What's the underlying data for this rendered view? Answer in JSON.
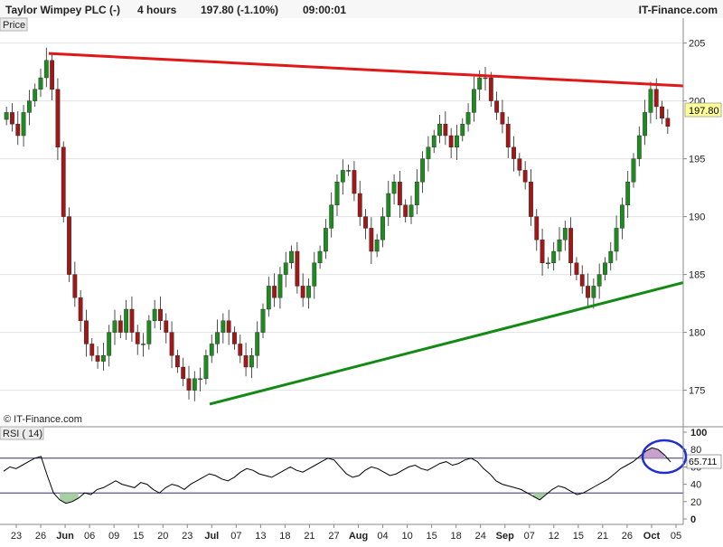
{
  "header": {
    "instrument": "Taylor Wimpey PLC (-)",
    "timeframe": "4 hours",
    "price_change": "197.80 (-1.10%)",
    "time": "09:00:01",
    "brand": "IT-Finance.com"
  },
  "price_panel": {
    "label": "Price",
    "last_price_badge": "197.80",
    "watermark": "© IT-Finance.com"
  },
  "rsi_panel": {
    "label": "RSI ( 14)",
    "value_badge": "65.711"
  },
  "colors": {
    "up_candle": "#1f8a1f",
    "down_candle": "#a01818",
    "resistance_line": "#e01818",
    "support_line": "#138a13",
    "rsi_line": "#000000",
    "rsi_overbought_fill": "#c8a0cc",
    "rsi_oversold_fill": "#a7cfa3",
    "highlight_circle": "#2030d0"
  },
  "chart_data": [
    {
      "type": "candlestick",
      "x_axis": {
        "tick_labels": [
          "23",
          "26",
          "Jun",
          "06",
          "09",
          "15",
          "20",
          "23",
          "Jul",
          "07",
          "13",
          "18",
          "21",
          "27",
          "Aug",
          "04",
          "10",
          "15",
          "18",
          "24",
          "Sep",
          "07",
          "12",
          "15",
          "21",
          "26",
          "Oct",
          "05"
        ],
        "bold_labels": [
          "Jun",
          "Jul",
          "Aug",
          "Sep",
          "Oct"
        ]
      },
      "y_axis": {
        "ticks": [
          175,
          180,
          185,
          190,
          195,
          200,
          205
        ],
        "ylim": [
          172,
          207
        ],
        "gridlines": true
      },
      "last_price": 197.8,
      "series": [
        {
          "segment": "late May",
          "closes": [
            199,
            198,
            197,
            199,
            200,
            201,
            202,
            203.5
          ]
        },
        {
          "segment": "June",
          "closes": [
            201,
            196,
            190,
            185,
            183,
            181,
            179,
            178,
            177.5,
            178,
            180,
            181,
            180,
            182,
            180,
            179,
            179,
            181,
            182,
            181,
            180,
            178,
            177,
            176,
            175,
            176
          ]
        },
        {
          "segment": "July",
          "closes": [
            176,
            178,
            179,
            180,
            181,
            180,
            179,
            178,
            177,
            178,
            180,
            182,
            184,
            183,
            185,
            186,
            187,
            184,
            183,
            184,
            186,
            187,
            189,
            191,
            193,
            194
          ]
        },
        {
          "segment": "August",
          "closes": [
            194,
            192,
            190,
            189,
            187,
            188,
            190,
            192,
            193,
            191,
            190,
            191,
            193,
            195,
            196,
            197,
            198,
            197,
            196,
            197,
            198,
            199,
            201,
            202
          ]
        },
        {
          "segment": "September",
          "closes": [
            202,
            200,
            199,
            198,
            196,
            195,
            194,
            193,
            190,
            188,
            186,
            186,
            187,
            188,
            189,
            186,
            185,
            184,
            183,
            184,
            185,
            186
          ]
        },
        {
          "segment": "late Sep - Oct",
          "closes": [
            187,
            189,
            191,
            193,
            195,
            197,
            199,
            201,
            199.5,
            198.5,
            197.8
          ]
        }
      ],
      "trendlines": [
        {
          "name": "resistance",
          "points": [
            {
              "x": "late May",
              "y": 204.1
            },
            {
              "x": "Oct 05",
              "y": 201.3
            }
          ]
        },
        {
          "name": "support",
          "points": [
            {
              "x": "Jul",
              "y": 173.8
            },
            {
              "x": "Oct 05",
              "y": 184.3
            }
          ]
        }
      ]
    },
    {
      "type": "line",
      "title": "RSI ( 14)",
      "y_axis": {
        "ticks": [
          0,
          20,
          40,
          60,
          80,
          100
        ],
        "ylim": [
          0,
          100
        ],
        "reference_lines": [
          30,
          70
        ]
      },
      "last_value": 65.711,
      "series": [
        {
          "segment": "late May",
          "values": [
            55,
            60,
            58,
            62,
            66,
            70,
            72
          ]
        },
        {
          "segment": "June",
          "values": [
            50,
            30,
            22,
            18,
            20,
            24,
            30,
            28,
            34,
            36,
            40,
            44,
            40,
            38,
            36,
            42,
            40,
            34,
            30,
            36,
            40,
            38,
            34
          ]
        },
        {
          "segment": "July",
          "values": [
            40,
            44,
            48,
            52,
            50,
            46,
            44,
            48,
            54,
            58,
            56,
            52,
            50,
            48,
            52,
            56,
            60,
            56,
            54,
            58,
            62,
            66,
            70,
            68
          ]
        },
        {
          "segment": "August",
          "values": [
            60,
            52,
            48,
            50,
            56,
            60,
            58,
            54,
            50,
            52,
            56,
            60,
            62,
            58,
            56,
            60,
            64,
            66,
            62,
            64,
            68,
            70
          ]
        },
        {
          "segment": "September",
          "values": [
            66,
            58,
            52,
            44,
            40,
            38,
            36,
            34,
            30,
            26,
            22,
            28,
            34,
            38,
            36,
            32,
            28,
            30,
            34,
            38,
            42
          ]
        },
        {
          "segment": "late Sep - Oct",
          "values": [
            46,
            52,
            58,
            62,
            66,
            72,
            78,
            82,
            80,
            74,
            65.7
          ]
        }
      ],
      "highlight": "circle around the latest RSI peak near 80"
    }
  ]
}
